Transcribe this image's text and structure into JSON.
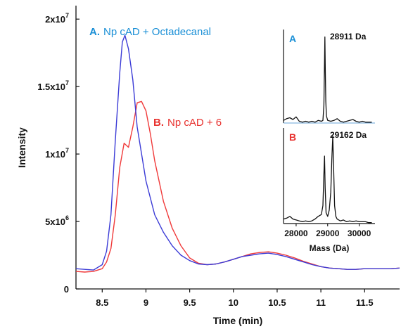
{
  "chart_data": [
    {
      "type": "line",
      "xlabel": "Time (min)",
      "ylabel": "Intensity",
      "xlim": [
        8.2,
        11.9
      ],
      "ylim": [
        0,
        21000000
      ],
      "x_ticks": [
        8.5,
        9,
        9.5,
        10,
        10.5,
        11,
        11.5
      ],
      "x_tick_labels": [
        "8.5",
        "9",
        "9.5",
        "10",
        "10.5",
        "11",
        "11.5"
      ],
      "y_ticks": [
        0,
        5000000,
        10000000,
        15000000,
        20000000
      ],
      "y_tick_labels": [
        {
          "base": "0",
          "exp": ""
        },
        {
          "base": "5x10",
          "exp": "6"
        },
        {
          "base": "1x10",
          "exp": "7"
        },
        {
          "base": "1.5x10",
          "exp": "7"
        },
        {
          "base": "2x10",
          "exp": "7"
        }
      ],
      "grid": false,
      "series": [
        {
          "name": "A. Np cAD + Octadecanal",
          "label_prefix": "A.",
          "label_text": "Np cAD + Octadecanal",
          "color": "#3b3bd6",
          "label_color_prefix": "#1a8fd6",
          "label_color_text": "#1a8fd6",
          "x": [
            8.2,
            8.3,
            8.4,
            8.5,
            8.55,
            8.6,
            8.65,
            8.7,
            8.73,
            8.76,
            8.8,
            8.85,
            8.9,
            9.0,
            9.1,
            9.2,
            9.3,
            9.4,
            9.5,
            9.6,
            9.7,
            9.8,
            9.9,
            10.0,
            10.1,
            10.2,
            10.3,
            10.4,
            10.5,
            10.6,
            10.7,
            10.8,
            10.9,
            11.0,
            11.1,
            11.2,
            11.3,
            11.4,
            11.5,
            11.6,
            11.7,
            11.8,
            11.9
          ],
          "y": [
            1500000,
            1450000,
            1400000,
            1800000,
            2800000,
            5500000,
            11000000,
            16000000,
            18300000,
            18800000,
            17800000,
            15500000,
            12000000,
            8000000,
            5500000,
            4200000,
            3200000,
            2500000,
            2100000,
            1850000,
            1800000,
            1850000,
            2000000,
            2200000,
            2400000,
            2500000,
            2600000,
            2650000,
            2550000,
            2400000,
            2200000,
            2000000,
            1800000,
            1650000,
            1550000,
            1500000,
            1450000,
            1450000,
            1500000,
            1500000,
            1500000,
            1500000,
            1550000
          ]
        },
        {
          "name": "B. Np cAD + 6",
          "label_prefix": "B.",
          "label_text": "Np cAD + 6",
          "color": "#f03a3a",
          "label_color_prefix": "#e8322f",
          "label_color_text": "#e8322f",
          "x": [
            8.2,
            8.3,
            8.4,
            8.5,
            8.55,
            8.6,
            8.65,
            8.7,
            8.75,
            8.8,
            8.85,
            8.9,
            8.95,
            9.0,
            9.05,
            9.1,
            9.2,
            9.3,
            9.4,
            9.5,
            9.6,
            9.7,
            9.8,
            9.9,
            10.0,
            10.1,
            10.2,
            10.3,
            10.4,
            10.5,
            10.6,
            10.7,
            10.8,
            10.9,
            11.0,
            11.1,
            11.2,
            11.3,
            11.4,
            11.5,
            11.6,
            11.7,
            11.8,
            11.9
          ],
          "y": [
            1300000,
            1250000,
            1300000,
            1500000,
            2000000,
            3000000,
            5500000,
            9000000,
            10800000,
            10500000,
            12000000,
            13800000,
            13900000,
            13200000,
            11500000,
            9500000,
            6500000,
            4500000,
            3200000,
            2300000,
            1900000,
            1800000,
            1850000,
            2000000,
            2200000,
            2400000,
            2600000,
            2700000,
            2750000,
            2650000,
            2500000,
            2300000,
            2050000,
            1850000,
            1650000,
            1550000,
            1500000,
            1450000,
            1450000,
            1500000,
            1500000,
            1500000,
            1500000,
            1550000
          ]
        }
      ]
    },
    {
      "type": "line",
      "xlabel": "Mass (Da)",
      "ylabel": "",
      "xlim": [
        27600,
        30500
      ],
      "x_ticks": [
        28000,
        29000,
        30000
      ],
      "x_tick_labels": [
        "28000",
        "29000",
        "30000"
      ],
      "grid": false,
      "panels": [
        {
          "letter": "A",
          "letter_color": "#1a8fd6",
          "annotation": "28911 Da",
          "ylim": [
            0,
            1
          ],
          "series": [
            {
              "color": "#111111",
              "x": [
                27600,
                27700,
                27800,
                27900,
                28000,
                28100,
                28200,
                28300,
                28400,
                28500,
                28600,
                28700,
                28800,
                28850,
                28880,
                28900,
                28911,
                28925,
                28940,
                28960,
                29000,
                29100,
                29200,
                29300,
                29400,
                29500,
                29600,
                29700,
                29800,
                29900,
                30000,
                30100,
                30200,
                30300,
                30400
              ],
              "y": [
                0.03,
                0.05,
                0.06,
                0.04,
                0.07,
                0.02,
                0.01,
                0.02,
                0.01,
                0.02,
                0.01,
                0.03,
                0.02,
                0.03,
                0.2,
                0.7,
                0.98,
                0.6,
                0.25,
                0.08,
                0.03,
                0.02,
                0.03,
                0.05,
                0.02,
                0.01,
                0.02,
                0.03,
                0.04,
                0.02,
                0.01,
                0.02,
                0.01,
                0.01,
                0.01
              ]
            }
          ]
        },
        {
          "letter": "B",
          "letter_color": "#e8322f",
          "annotation": "29162 Da",
          "ylim": [
            0,
            1
          ],
          "series": [
            {
              "color": "#111111",
              "x": [
                27600,
                27700,
                27800,
                27900,
                28000,
                28100,
                28200,
                28300,
                28400,
                28500,
                28600,
                28700,
                28800,
                28850,
                28880,
                28900,
                28920,
                28950,
                29000,
                29050,
                29100,
                29130,
                29162,
                29190,
                29220,
                29260,
                29300,
                29400,
                29500,
                29600,
                29700,
                29800,
                29900,
                30000,
                30100,
                30200,
                30300,
                30400
              ],
              "y": [
                0.05,
                0.06,
                0.08,
                0.05,
                0.04,
                0.03,
                0.02,
                0.03,
                0.02,
                0.03,
                0.05,
                0.08,
                0.1,
                0.2,
                0.55,
                0.75,
                0.4,
                0.12,
                0.08,
                0.15,
                0.35,
                0.7,
                0.97,
                0.6,
                0.2,
                0.08,
                0.05,
                0.03,
                0.04,
                0.02,
                0.03,
                0.02,
                0.03,
                0.02,
                0.02,
                0.02,
                0.01,
                0.01
              ]
            }
          ]
        }
      ]
    }
  ]
}
